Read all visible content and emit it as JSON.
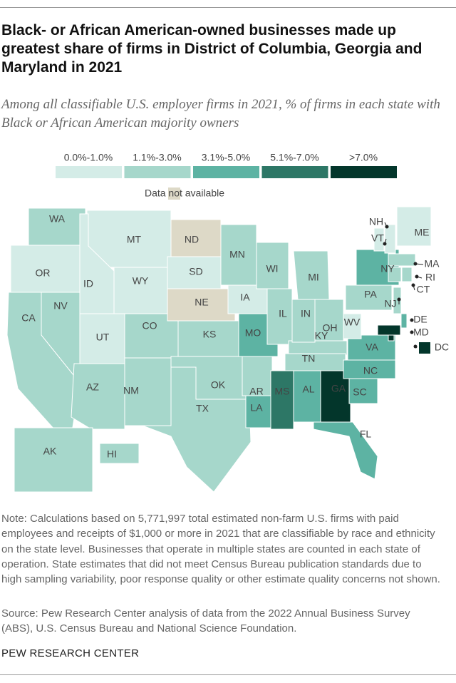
{
  "chart_data": {
    "type": "choropleth",
    "title": "Black- or African American-owned businesses made up greatest share of firms in District of Columbia, Georgia and Maryland in 2021",
    "subtitle": "Among all classifiable U.S. employer firms in 2021, % of firms in each state with Black or African American majority owners",
    "legend": [
      {
        "label": "0.0%-1.0%",
        "color": "#d4ece7"
      },
      {
        "label": "1.1%-3.0%",
        "color": "#a6d7cb"
      },
      {
        "label": "3.1%-5.0%",
        "color": "#5db3a3"
      },
      {
        "label": "5.1%-7.0%",
        "color": "#2d7766"
      },
      {
        "label": ">7.0%",
        "color": "#03362b"
      }
    ],
    "na_label": "Data not available",
    "na_color": "#ddd9c7",
    "states": [
      {
        "label": "WA",
        "category": 1
      },
      {
        "label": "OR",
        "category": 0
      },
      {
        "label": "CA",
        "category": 1
      },
      {
        "label": "NV",
        "category": 1
      },
      {
        "label": "MT",
        "category": 0
      },
      {
        "label": "ID",
        "category": 0
      },
      {
        "label": "WY",
        "category": 0
      },
      {
        "label": "UT",
        "category": 0
      },
      {
        "label": "CO",
        "category": 1
      },
      {
        "label": "AZ",
        "category": 1
      },
      {
        "label": "NM",
        "category": 1
      },
      {
        "label": "ND",
        "category": null
      },
      {
        "label": "SD",
        "category": 0
      },
      {
        "label": "NE",
        "category": null
      },
      {
        "label": "KS",
        "category": 1
      },
      {
        "label": "OK",
        "category": 1
      },
      {
        "label": "TX",
        "category": 1
      },
      {
        "label": "MN",
        "category": 1
      },
      {
        "label": "IA",
        "category": 0
      },
      {
        "label": "MO",
        "category": 2
      },
      {
        "label": "AR",
        "category": 1
      },
      {
        "label": "LA",
        "category": 2
      },
      {
        "label": "WI",
        "category": 1
      },
      {
        "label": "IL",
        "category": 1
      },
      {
        "label": "MI",
        "category": 1
      },
      {
        "label": "KY",
        "category": 1
      },
      {
        "label": "IN",
        "category": 1
      },
      {
        "label": "OH",
        "category": 1
      },
      {
        "label": "TN",
        "category": 1
      },
      {
        "label": "MS",
        "category": 3
      },
      {
        "label": "AL",
        "category": 2
      },
      {
        "label": "GA",
        "category": 4
      },
      {
        "label": "FL",
        "category": 2
      },
      {
        "label": "SC",
        "category": 2
      },
      {
        "label": "NC",
        "category": 2
      },
      {
        "label": "VA",
        "category": 2
      },
      {
        "label": "WV",
        "category": 0
      },
      {
        "label": "PA",
        "category": 1
      },
      {
        "label": "NY",
        "category": 2
      },
      {
        "label": "VT",
        "category": 0
      },
      {
        "label": "NH",
        "category": 0
      },
      {
        "label": "ME",
        "category": 0
      },
      {
        "label": "MA",
        "category": 1
      },
      {
        "label": "CT",
        "category": 1
      },
      {
        "label": "RI",
        "category": 1
      },
      {
        "label": "NJ",
        "category": 1
      },
      {
        "label": "DE",
        "category": 2
      },
      {
        "label": "MD",
        "category": 4
      },
      {
        "label": "DC",
        "category": 4
      },
      {
        "label": "AK",
        "category": 1
      },
      {
        "label": "HI",
        "category": 1
      }
    ],
    "note": "Note: Calculations based on 5,771,997 total estimated non-farm U.S. firms with paid employees and receipts of $1,000 or more in 2021 that are classifiable by race and ethnicity on the state level. Businesses that operate in multiple states are counted in each state of operation. State estimates that did not meet Census Bureau publication standards due to high sampling variability, poor response quality or other estimate quality concerns not shown.",
    "source": "Source: Pew Research Center analysis of data from the 2022 Annual Business Survey (ABS), U.S. Census Bureau and National Science Foundation.",
    "footer": "PEW RESEARCH CENTER"
  }
}
